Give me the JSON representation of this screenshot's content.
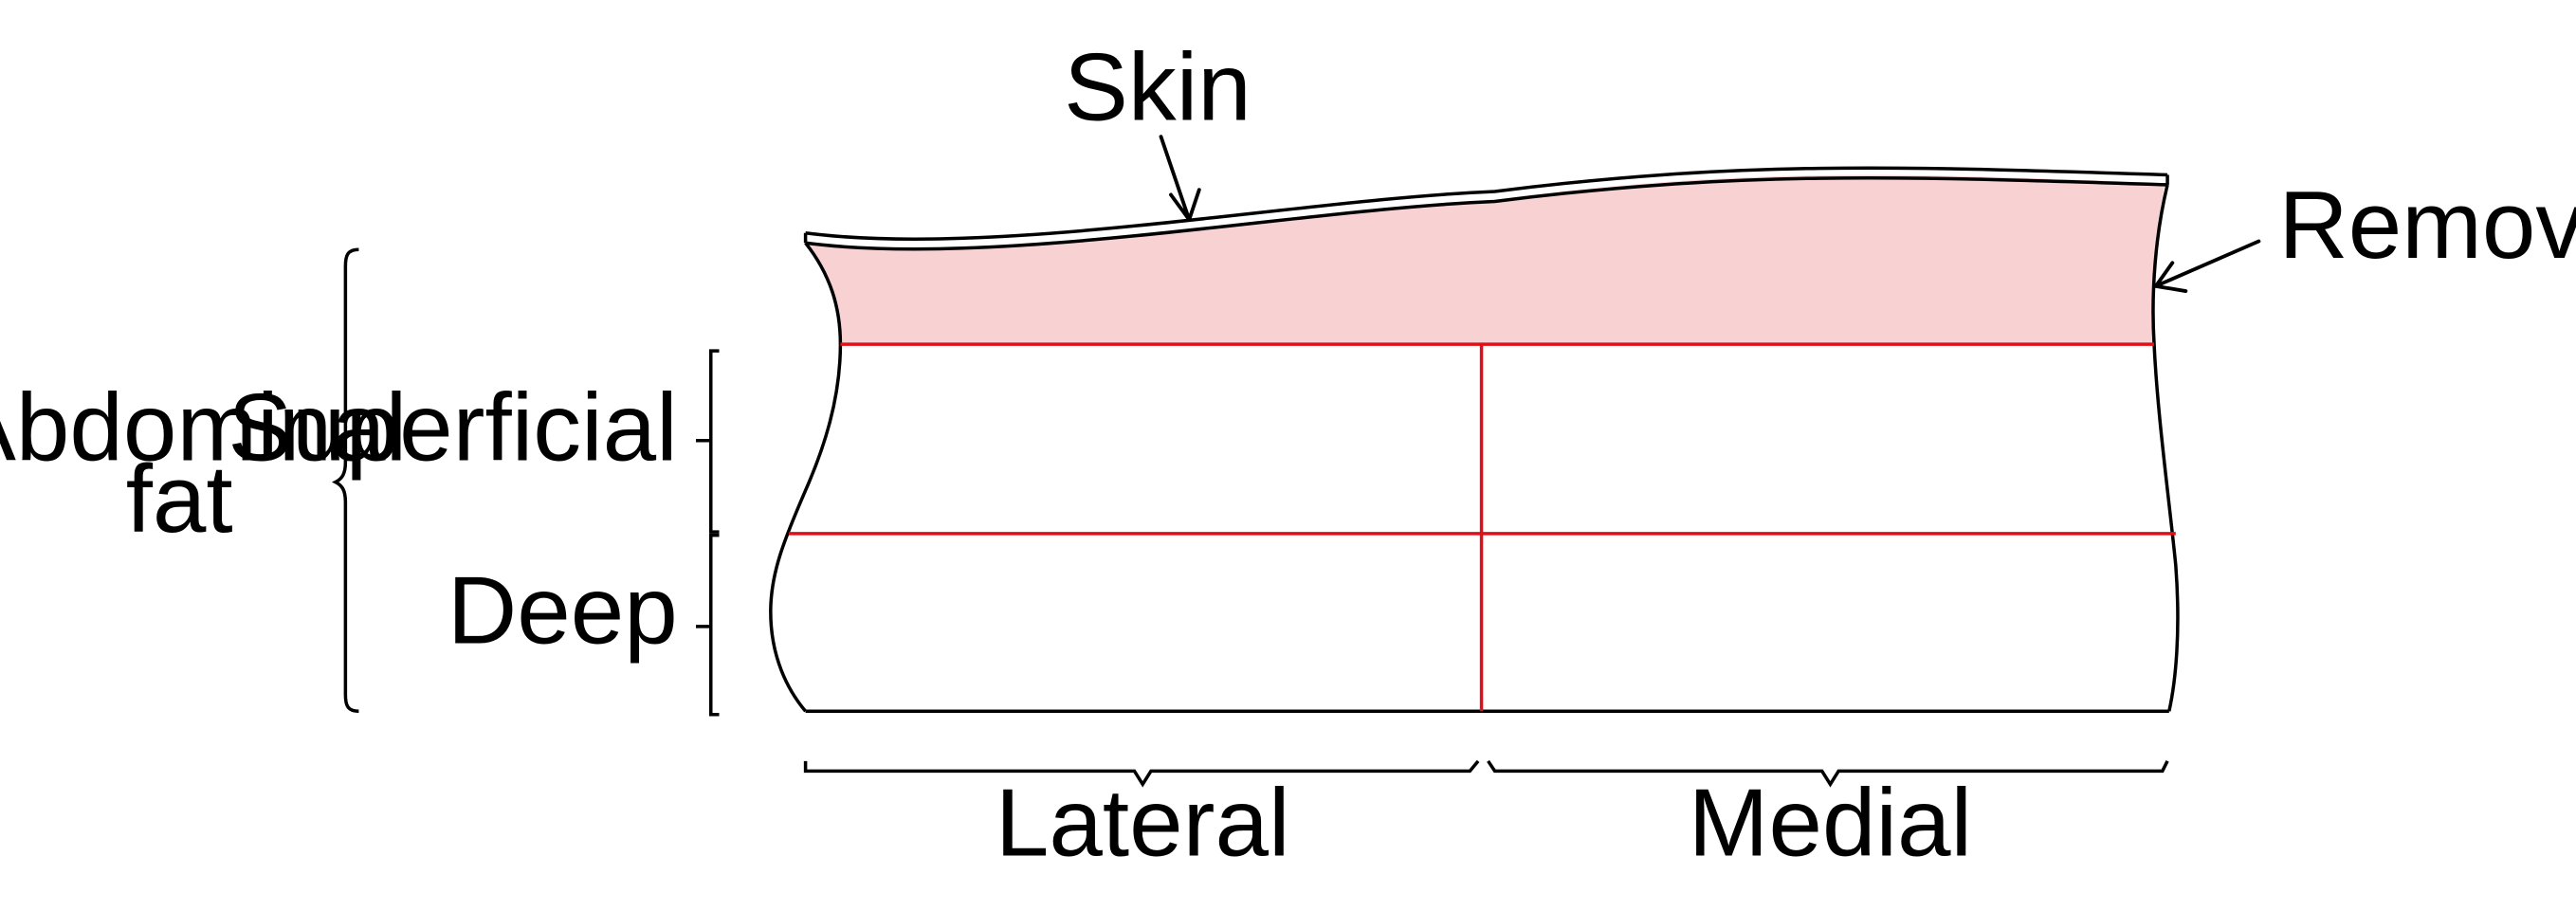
{
  "labels": {
    "skin": "Skin",
    "removed": "Removed",
    "abdominal_line1": "Abdominal",
    "abdominal_line2": "fat",
    "superficial": "Superficial",
    "deep": "Deep",
    "lateral": "Lateral",
    "medial": "Medial"
  },
  "colors": {
    "outline": "#000000",
    "cut_line": "#e0101a",
    "removed_fill": "#f8d2d2",
    "background": "#ffffff"
  }
}
